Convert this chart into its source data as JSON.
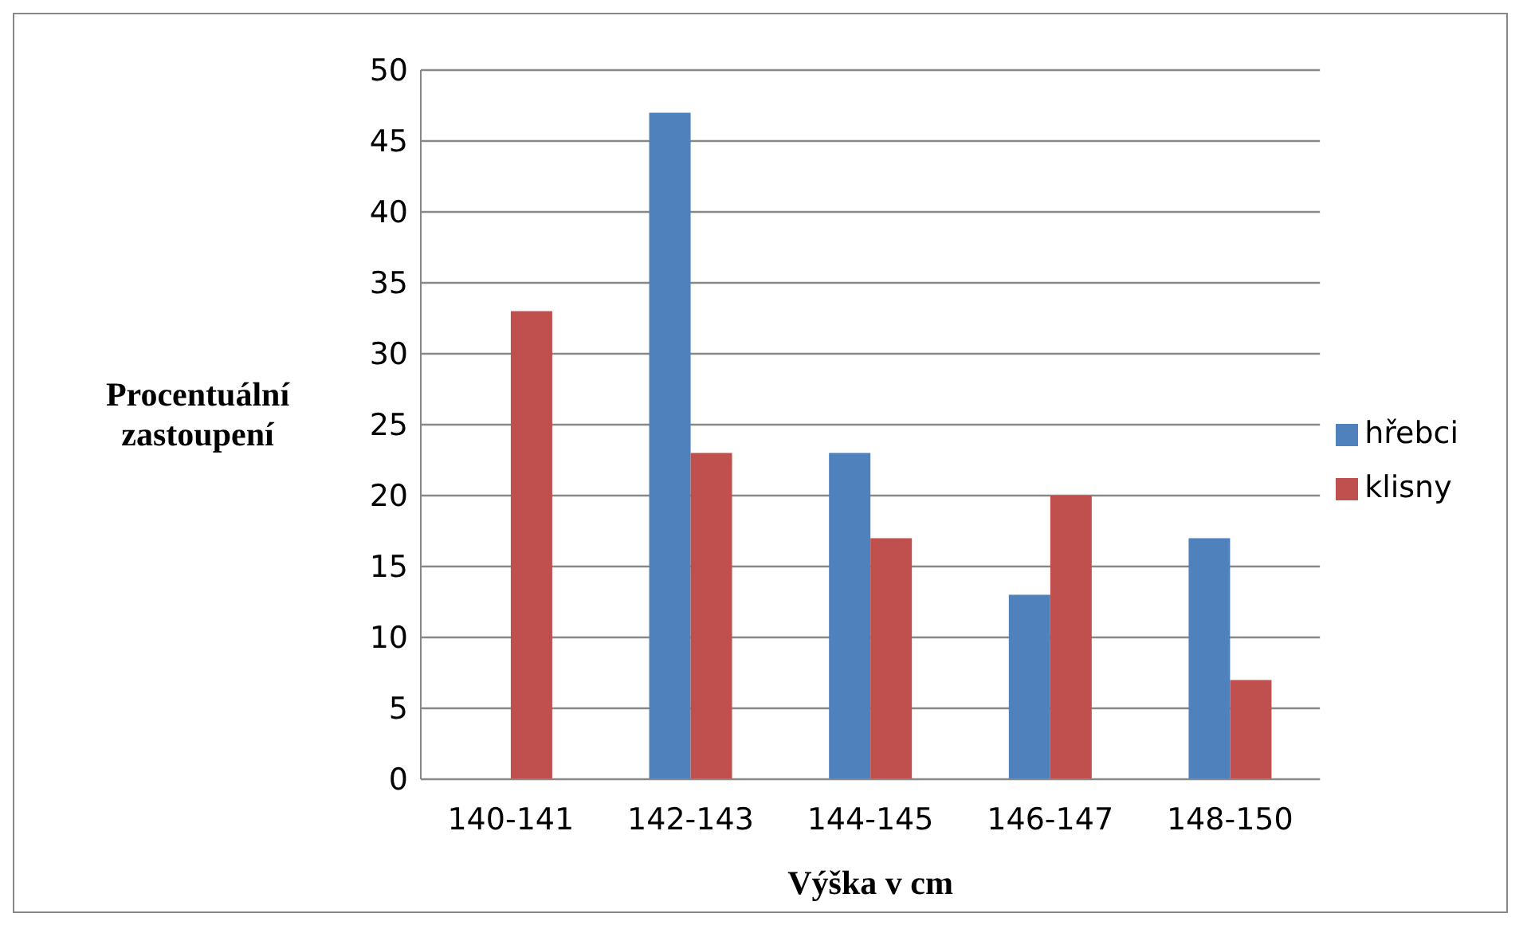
{
  "chart_data": {
    "type": "bar",
    "xlabel": "Výška v cm",
    "ylabel": "Procentuální zastoupení",
    "categories": [
      "140-141",
      "142-143",
      "144-145",
      "146-147",
      "148-150"
    ],
    "series": [
      {
        "name": "hřebci",
        "color": "#4f81bd",
        "values": [
          0,
          47,
          23,
          13,
          17
        ]
      },
      {
        "name": "klisny",
        "color": "#c0504d",
        "values": [
          33,
          23,
          17,
          20,
          7
        ]
      }
    ],
    "ylim": [
      0,
      50
    ],
    "yticks": [
      0,
      5,
      10,
      15,
      20,
      25,
      30,
      35,
      40,
      45,
      50
    ],
    "grid": "y",
    "legend": "right"
  }
}
